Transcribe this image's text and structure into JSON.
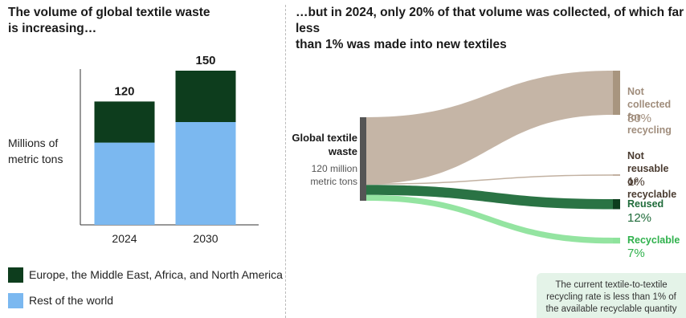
{
  "left_title": "The volume of global textile waste\nis increasing…",
  "right_title": "…but in 2024, only 20% of that volume was collected, of which far less\nthan 1% was made into new textiles",
  "colors": {
    "europe": "#0d3d1d",
    "rest": "#7bb8f0",
    "not_collected": "#c2b1a1",
    "not_reusable": "#c2b1a1",
    "reused": "#1f6b3a",
    "recyclable": "#8ee39c",
    "source_bar": "#555555"
  },
  "chart_data": [
    {
      "type": "bar",
      "stacked": true,
      "categories": [
        "2024",
        "2030"
      ],
      "series": [
        {
          "name": "Europe, the Middle East, Africa, and North America",
          "values": [
            40,
            50
          ]
        },
        {
          "name": "Rest of the world",
          "values": [
            80,
            100
          ]
        }
      ],
      "totals": [
        "120",
        "150"
      ],
      "ylabel": "Millions of\nmetric tons",
      "ylim": [
        0,
        150
      ],
      "legend": "bottom"
    },
    {
      "type": "sankey",
      "source": {
        "name": "Global textile\nwaste",
        "sub": "120 million\nmetric tons"
      },
      "targets": [
        {
          "name": "Not collected\nfor recycling",
          "percent": "80%",
          "value": 80,
          "color": "#c2b1a1"
        },
        {
          "name": "Not reusable\nor recyclable",
          "percent": "1%",
          "value": 1,
          "color": "#c2b1a1"
        },
        {
          "name": "Reused",
          "percent": "12%",
          "value": 12,
          "color": "#1f6b3a"
        },
        {
          "name": "Recyclable",
          "percent": "7%",
          "value": 7,
          "color": "#8ee39c"
        }
      ],
      "note": "The current textile-to-textile\nrecycling rate is less than 1% of\nthe available recyclable quantity"
    }
  ]
}
